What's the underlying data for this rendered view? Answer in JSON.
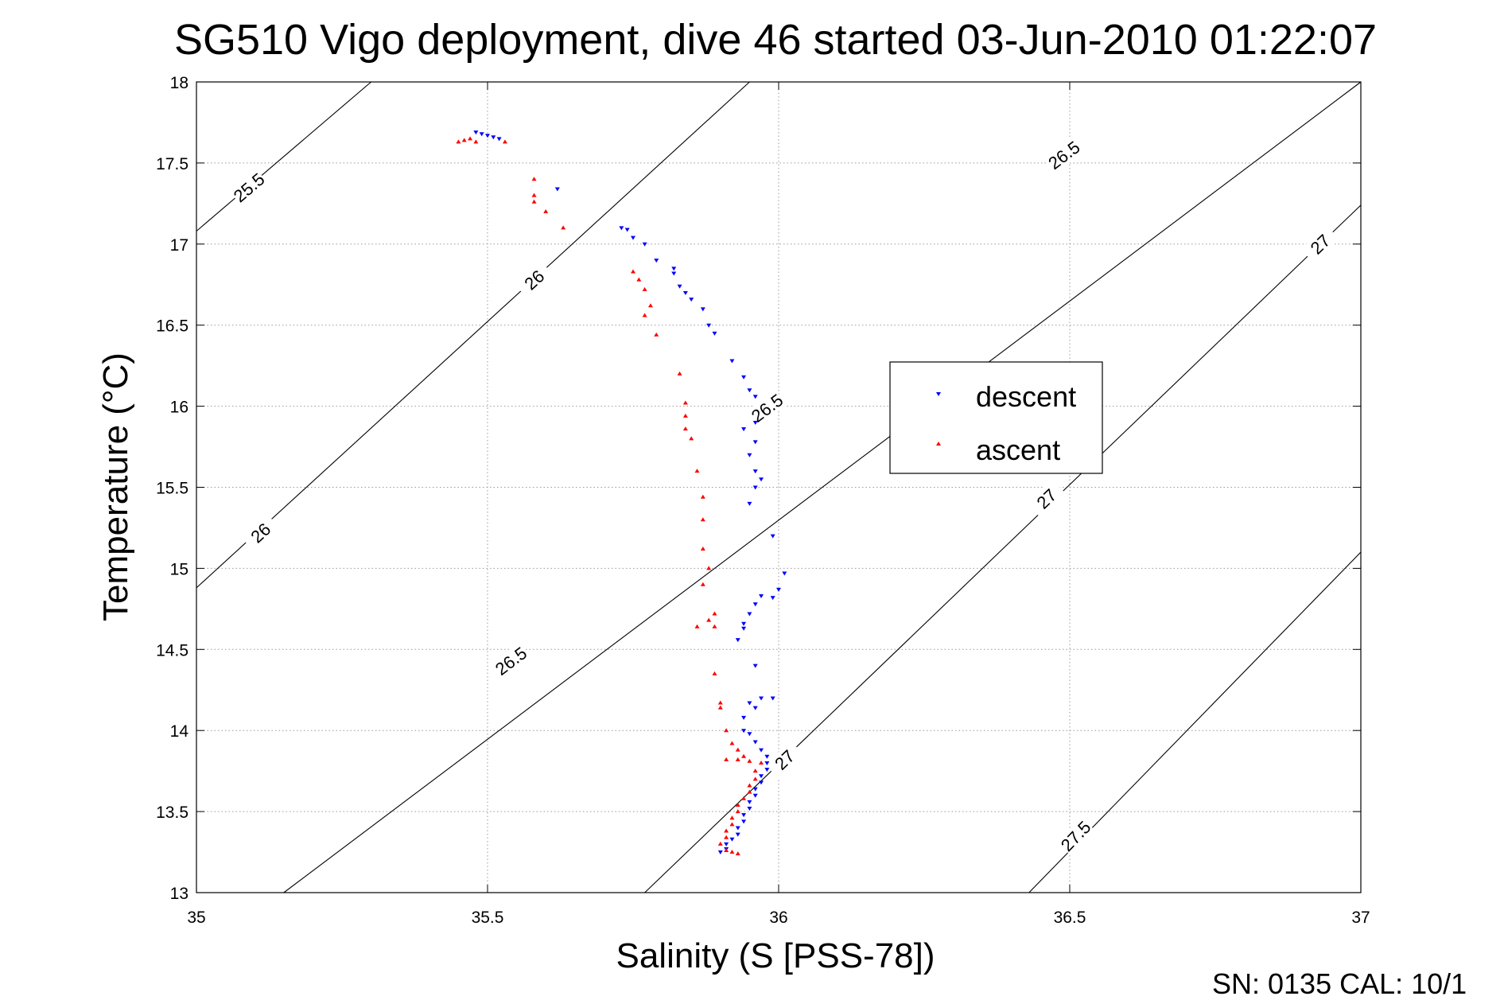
{
  "chart_data": {
    "type": "scatter",
    "title": "SG510 Vigo deployment, dive 46 started 03-Jun-2010 01:22:07",
    "xlabel": "Salinity (S [PSS-78])",
    "ylabel": "Temperature (°C)",
    "xlim": [
      35,
      37
    ],
    "ylim": [
      13,
      18
    ],
    "xticks": [
      "35",
      "35.5",
      "36",
      "36.5",
      "37"
    ],
    "yticks": [
      "13",
      "13.5",
      "14",
      "14.5",
      "15",
      "15.5",
      "16",
      "16.5",
      "17",
      "17.5",
      "18"
    ],
    "grid": true,
    "legend_position": "center-right",
    "footer": "SN: 0135  CAL: 10/1",
    "density_contours": [
      {
        "sigma": 25.5,
        "line": [
          [
            35,
            17.08
          ],
          [
            35.3,
            18
          ]
        ],
        "labels": [
          {
            "text": "25.5",
            "s": 35.09,
            "t": 17.35
          }
        ]
      },
      {
        "sigma": 26.0,
        "line": [
          [
            35,
            14.88
          ],
          [
            35.95,
            18
          ]
        ],
        "labels": [
          {
            "text": "26",
            "s": 35.11,
            "t": 15.22
          },
          {
            "text": "26",
            "s": 35.58,
            "t": 16.78
          }
        ]
      },
      {
        "sigma": 26.5,
        "line": [
          [
            35.15,
            13
          ],
          [
            37,
            18
          ]
        ],
        "labels": [
          {
            "text": "26.5",
            "s": 35.54,
            "t": 14.43
          },
          {
            "text": "26.5",
            "s": 35.98,
            "t": 15.99
          },
          {
            "text": "26.5",
            "s": 36.49,
            "t": 17.55
          }
        ]
      },
      {
        "sigma": 27.0,
        "line": [
          [
            35.77,
            13
          ],
          [
            37,
            17.24
          ]
        ],
        "labels": [
          {
            "text": "27",
            "s": 36.01,
            "t": 13.82
          },
          {
            "text": "27",
            "s": 36.46,
            "t": 15.43
          },
          {
            "text": "27",
            "s": 36.93,
            "t": 17.0
          }
        ]
      },
      {
        "sigma": 27.5,
        "line": [
          [
            36.43,
            13
          ],
          [
            37,
            15.1
          ]
        ],
        "labels": [
          {
            "text": "27.5",
            "s": 36.51,
            "t": 13.35
          }
        ]
      }
    ],
    "series": [
      {
        "name": "descent",
        "color": "#0000ff",
        "marker": "triangle-down",
        "points": [
          [
            35.48,
            17.69
          ],
          [
            35.49,
            17.68
          ],
          [
            35.5,
            17.67
          ],
          [
            35.51,
            17.66
          ],
          [
            35.52,
            17.65
          ],
          [
            35.62,
            17.34
          ],
          [
            35.73,
            17.1
          ],
          [
            35.74,
            17.09
          ],
          [
            35.75,
            17.04
          ],
          [
            35.77,
            17.0
          ],
          [
            35.79,
            16.9
          ],
          [
            35.82,
            16.85
          ],
          [
            35.82,
            16.82
          ],
          [
            35.83,
            16.74
          ],
          [
            35.84,
            16.7
          ],
          [
            35.85,
            16.66
          ],
          [
            35.87,
            16.6
          ],
          [
            35.88,
            16.5
          ],
          [
            35.89,
            16.45
          ],
          [
            35.92,
            16.28
          ],
          [
            35.94,
            16.18
          ],
          [
            35.95,
            16.1
          ],
          [
            35.96,
            16.06
          ],
          [
            35.96,
            15.9
          ],
          [
            35.94,
            15.86
          ],
          [
            35.96,
            15.78
          ],
          [
            35.95,
            15.7
          ],
          [
            35.96,
            15.6
          ],
          [
            35.97,
            15.55
          ],
          [
            35.96,
            15.5
          ],
          [
            35.95,
            15.4
          ],
          [
            35.99,
            15.2
          ],
          [
            36.01,
            14.97
          ],
          [
            36.0,
            14.87
          ],
          [
            35.97,
            14.83
          ],
          [
            35.99,
            14.82
          ],
          [
            35.96,
            14.78
          ],
          [
            35.95,
            14.72
          ],
          [
            35.94,
            14.66
          ],
          [
            35.94,
            14.63
          ],
          [
            35.93,
            14.56
          ],
          [
            35.96,
            14.4
          ],
          [
            35.97,
            14.2
          ],
          [
            35.99,
            14.2
          ],
          [
            35.95,
            14.17
          ],
          [
            35.96,
            14.14
          ],
          [
            35.94,
            14.08
          ],
          [
            35.94,
            14.0
          ],
          [
            35.95,
            13.98
          ],
          [
            35.96,
            13.93
          ],
          [
            35.97,
            13.88
          ],
          [
            35.98,
            13.84
          ],
          [
            35.98,
            13.8
          ],
          [
            35.98,
            13.76
          ],
          [
            35.97,
            13.72
          ],
          [
            35.97,
            13.68
          ],
          [
            35.96,
            13.64
          ],
          [
            35.96,
            13.6
          ],
          [
            35.95,
            13.56
          ],
          [
            35.95,
            13.52
          ],
          [
            35.94,
            13.48
          ],
          [
            35.94,
            13.44
          ],
          [
            35.93,
            13.4
          ],
          [
            35.93,
            13.36
          ],
          [
            35.92,
            13.33
          ],
          [
            35.91,
            13.3
          ],
          [
            35.91,
            13.27
          ],
          [
            35.9,
            13.25
          ]
        ]
      },
      {
        "name": "ascent",
        "color": "#ff0000",
        "marker": "triangle-up",
        "points": [
          [
            35.45,
            17.63
          ],
          [
            35.46,
            17.64
          ],
          [
            35.47,
            17.65
          ],
          [
            35.48,
            17.63
          ],
          [
            35.53,
            17.63
          ],
          [
            35.58,
            17.4
          ],
          [
            35.58,
            17.3
          ],
          [
            35.58,
            17.26
          ],
          [
            35.6,
            17.2
          ],
          [
            35.63,
            17.1
          ],
          [
            35.75,
            16.83
          ],
          [
            35.76,
            16.78
          ],
          [
            35.77,
            16.72
          ],
          [
            35.78,
            16.62
          ],
          [
            35.77,
            16.56
          ],
          [
            35.79,
            16.44
          ],
          [
            35.83,
            16.2
          ],
          [
            35.84,
            16.02
          ],
          [
            35.84,
            15.94
          ],
          [
            35.84,
            15.86
          ],
          [
            35.85,
            15.8
          ],
          [
            35.86,
            15.6
          ],
          [
            35.87,
            15.44
          ],
          [
            35.87,
            15.3
          ],
          [
            35.87,
            15.12
          ],
          [
            35.88,
            15.0
          ],
          [
            35.87,
            14.9
          ],
          [
            35.89,
            14.72
          ],
          [
            35.88,
            14.68
          ],
          [
            35.86,
            14.64
          ],
          [
            35.89,
            14.64
          ],
          [
            35.89,
            14.35
          ],
          [
            35.9,
            14.17
          ],
          [
            35.9,
            14.14
          ],
          [
            35.91,
            14.0
          ],
          [
            35.92,
            13.92
          ],
          [
            35.93,
            13.88
          ],
          [
            35.94,
            13.84
          ],
          [
            35.91,
            13.82
          ],
          [
            35.93,
            13.82
          ],
          [
            35.95,
            13.81
          ],
          [
            35.97,
            13.8
          ],
          [
            35.96,
            13.75
          ],
          [
            35.96,
            13.7
          ],
          [
            35.95,
            13.66
          ],
          [
            35.95,
            13.62
          ],
          [
            35.94,
            13.58
          ],
          [
            35.93,
            13.54
          ],
          [
            35.93,
            13.5
          ],
          [
            35.92,
            13.46
          ],
          [
            35.92,
            13.42
          ],
          [
            35.91,
            13.38
          ],
          [
            35.91,
            13.34
          ],
          [
            35.9,
            13.3
          ],
          [
            35.91,
            13.26
          ],
          [
            35.92,
            13.25
          ],
          [
            35.93,
            13.24
          ]
        ]
      }
    ]
  }
}
